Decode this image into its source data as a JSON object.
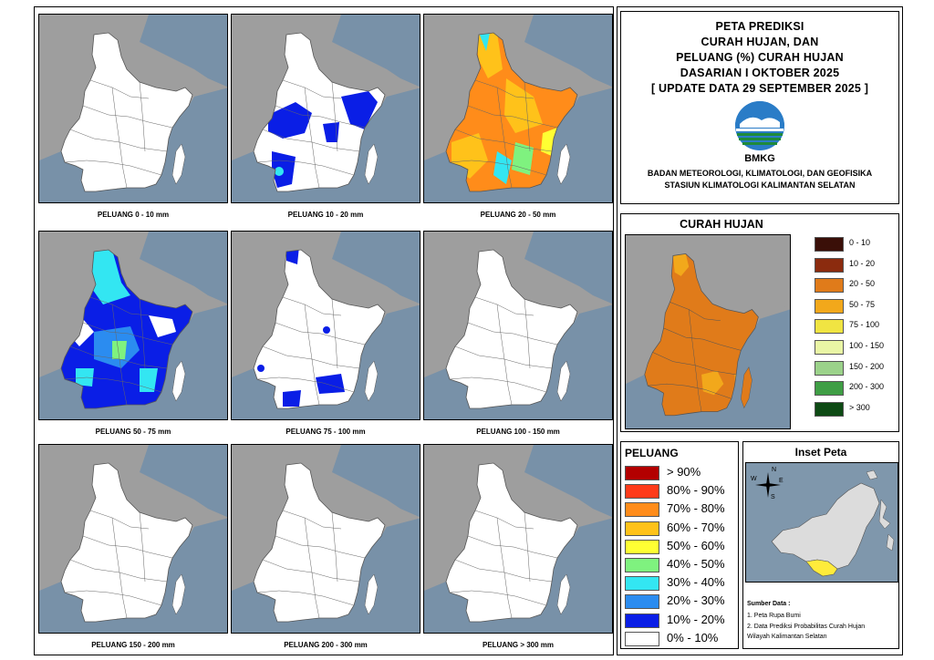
{
  "title": {
    "lines": [
      "PETA PREDIKSI",
      "CURAH HUJAN, DAN",
      "PELUANG (%) CURAH HUJAN",
      "DASARIAN I OKTOBER 2025",
      "[ UPDATE DATA 29 SEPTEMBER 2025 ]"
    ],
    "logo_text": "BMKG",
    "org_lines": [
      "BADAN METEOROLOGI, KLIMATOLOGI, DAN GEOFISIKA",
      "STASIUN KLIMATOLOGI KALIMANTAN SELATAN"
    ]
  },
  "colors": {
    "sea": "#6b8cae",
    "land_other": "#9e9e9e",
    "region": "#ffffff",
    "boundary": "#555555"
  },
  "panels": [
    {
      "label": "PELUANG 0 - 10 mm",
      "fill": "none"
    },
    {
      "label": "PELUANG 10 - 20 mm",
      "fill": "partial-blue"
    },
    {
      "label": "PELUANG 20 - 50 mm",
      "fill": "orange-yellow"
    },
    {
      "label": "PELUANG 50 - 75 mm",
      "fill": "blue-cyan"
    },
    {
      "label": "PELUANG 75 - 100 mm",
      "fill": "small-blue"
    },
    {
      "label": "PELUANG 100 - 150 mm",
      "fill": "none"
    },
    {
      "label": "PELUANG 150 - 200 mm",
      "fill": "none"
    },
    {
      "label": "PELUANG 200 - 300 mm",
      "fill": "none"
    },
    {
      "label": "PELUANG > 300 mm",
      "fill": "none"
    }
  ],
  "curah_hujan": {
    "title": "CURAH HUJAN",
    "legend": [
      {
        "label": "0 - 10",
        "color": "#3a0f08"
      },
      {
        "label": "10 - 20",
        "color": "#8b2b0e"
      },
      {
        "label": "20 - 50",
        "color": "#e07b1a"
      },
      {
        "label": "50 - 75",
        "color": "#f2a81b"
      },
      {
        "label": "75 - 100",
        "color": "#f0e442"
      },
      {
        "label": "100 - 150",
        "color": "#e9f5a5"
      },
      {
        "label": "150 - 200",
        "color": "#9bd28a"
      },
      {
        "label": "200 - 300",
        "color": "#3f9e45"
      },
      {
        "label": "> 300",
        "color": "#0d4a14"
      }
    ]
  },
  "peluang": {
    "title": "PELUANG",
    "legend": [
      {
        "label": "> 90%",
        "color": "#b30000"
      },
      {
        "label": "80% - 90%",
        "color": "#ff3b1a"
      },
      {
        "label": "70% - 80%",
        "color": "#ff8c1a"
      },
      {
        "label": "60% - 70%",
        "color": "#ffc21a"
      },
      {
        "label": "50% - 60%",
        "color": "#ffff33"
      },
      {
        "label": "40% - 50%",
        "color": "#7ff27f"
      },
      {
        "label": "30% - 40%",
        "color": "#33e6f2"
      },
      {
        "label": "20% - 30%",
        "color": "#2b8cf0"
      },
      {
        "label": "10% - 20%",
        "color": "#0a1ee6"
      },
      {
        "label": "0% - 10%",
        "color": "#ffffff"
      }
    ]
  },
  "inset": {
    "title": "Inset Peta",
    "compass": {
      "n": "N",
      "s": "S",
      "e": "E",
      "w": "W"
    },
    "source_title": "Sumber Data :",
    "source_items": [
      "1. Peta Rupa Bumi",
      "2. Data Prediksi Probabilitas Curah Hujan",
      "    Wilayah Kalimantan Selatan"
    ]
  }
}
